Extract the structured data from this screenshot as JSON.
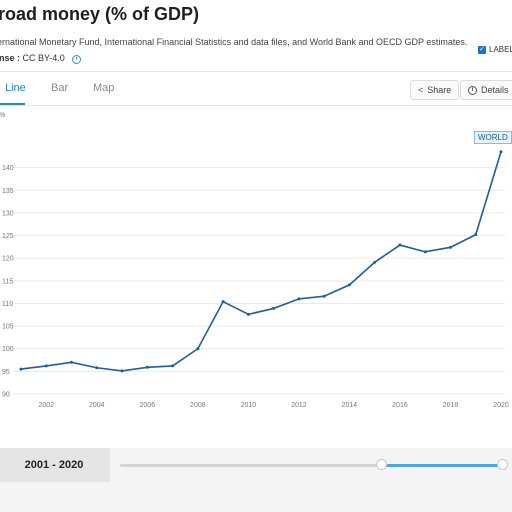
{
  "header": {
    "title": "road money (% of GDP)",
    "source": "ernational Monetary Fund, International Financial Statistics and data files, and World Bank and OECD GDP estimates.",
    "license_label": "ense :",
    "license_value": "CC BY-4.0"
  },
  "tabs": [
    {
      "label": "Line",
      "active": true
    },
    {
      "label": "Bar",
      "active": false
    },
    {
      "label": "Map",
      "active": false
    }
  ],
  "toolbar": {
    "share_label": "Share",
    "details_label": "Details"
  },
  "legend": {
    "label": "LABEL",
    "checked": true
  },
  "tooltip": {
    "text": "WORLD"
  },
  "range": {
    "label": "2001 - 2020",
    "start_year": 2001,
    "end_year": 2020
  },
  "colors": {
    "accent": "#1b88d8",
    "series": "#1f5f99"
  },
  "chart_data": {
    "type": "line",
    "y_unit_label": "%",
    "x": [
      2001,
      2002,
      2003,
      2004,
      2005,
      2006,
      2007,
      2008,
      2009,
      2010,
      2011,
      2012,
      2013,
      2014,
      2015,
      2016,
      2017,
      2018,
      2019,
      2020
    ],
    "series": [
      {
        "name": "WORLD",
        "values": [
          95.5,
          96.2,
          97.0,
          95.8,
          95.1,
          95.9,
          96.2,
          100.0,
          110.4,
          107.6,
          108.9,
          111.0,
          111.6,
          114.1,
          119.1,
          122.9,
          121.4,
          122.4,
          125.2,
          143.5
        ]
      }
    ],
    "ylim": [
      90,
      145
    ],
    "yticks": [
      90,
      95,
      100,
      105,
      110,
      115,
      120,
      125,
      130,
      135,
      140
    ],
    "xticks": [
      "2002",
      "2004",
      "2006",
      "2008",
      "2010",
      "2012",
      "2014",
      "2016",
      "2018",
      "2020"
    ],
    "grid": true,
    "legend_position": "top-right"
  }
}
